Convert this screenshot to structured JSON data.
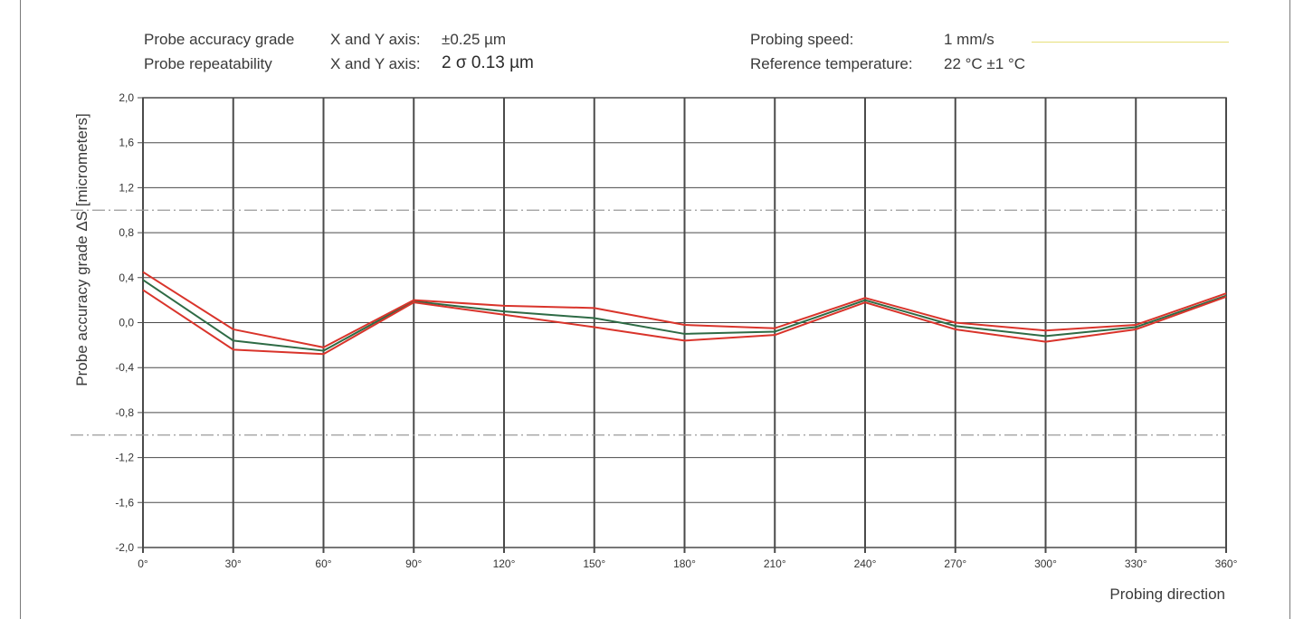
{
  "header": {
    "accuracy_label": "Probe accuracy grade",
    "accuracy_axis": "X and Y axis:",
    "accuracy_value": "±0.25 µm",
    "repeat_label": "Probe repeatability",
    "repeat_axis": "X and Y axis:",
    "repeat_value": "2 σ 0.13 µm",
    "speed_label": "Probing speed:",
    "speed_value": "1 mm/s",
    "temp_label": "Reference temperature:",
    "temp_value": "22 °C ±1 °C"
  },
  "chart_data": {
    "type": "line",
    "xlabel": "Probing direction",
    "ylabel": "Probe accuracy grade ΔS [micrometers]",
    "x": [
      0,
      30,
      60,
      90,
      120,
      150,
      180,
      210,
      240,
      270,
      300,
      330,
      360
    ],
    "x_tick_labels": [
      "0°",
      "30°",
      "60°",
      "90°",
      "120°",
      "150°",
      "180°",
      "210°",
      "240°",
      "270°",
      "300°",
      "330°",
      "360°"
    ],
    "y_ticks": [
      2.0,
      1.6,
      1.2,
      0.8,
      0.4,
      0.0,
      -0.4,
      -0.8,
      -1.2,
      -1.6,
      -2.0
    ],
    "y_tick_labels": [
      "2,0",
      "1,6",
      "1,2",
      "0,8",
      "0,4",
      "0,0",
      "-0,4",
      "-0,8",
      "-1,2",
      "-1,6",
      "-2,0"
    ],
    "ylim": [
      -2.0,
      2.0
    ],
    "xlim": [
      0,
      360
    ],
    "grid": true,
    "reference_lines": [
      1.0,
      -1.0
    ],
    "series": [
      {
        "color": "#2e6b45",
        "values": [
          0.38,
          -0.16,
          -0.25,
          0.19,
          0.1,
          0.04,
          -0.1,
          -0.08,
          0.2,
          -0.03,
          -0.12,
          -0.04,
          0.24
        ]
      },
      {
        "color": "#d9342b",
        "values": [
          0.45,
          -0.06,
          -0.22,
          0.2,
          0.15,
          0.13,
          -0.02,
          -0.05,
          0.22,
          0.0,
          -0.07,
          -0.02,
          0.26
        ]
      },
      {
        "color": "#d9342b",
        "values": [
          0.29,
          -0.24,
          -0.28,
          0.18,
          0.07,
          -0.04,
          -0.16,
          -0.11,
          0.18,
          -0.06,
          -0.17,
          -0.06,
          0.23
        ]
      }
    ]
  },
  "colors": {
    "grid": "#4a4a4a",
    "reference_line": "#9a9a9a",
    "speed_line": "#e6df7a"
  }
}
